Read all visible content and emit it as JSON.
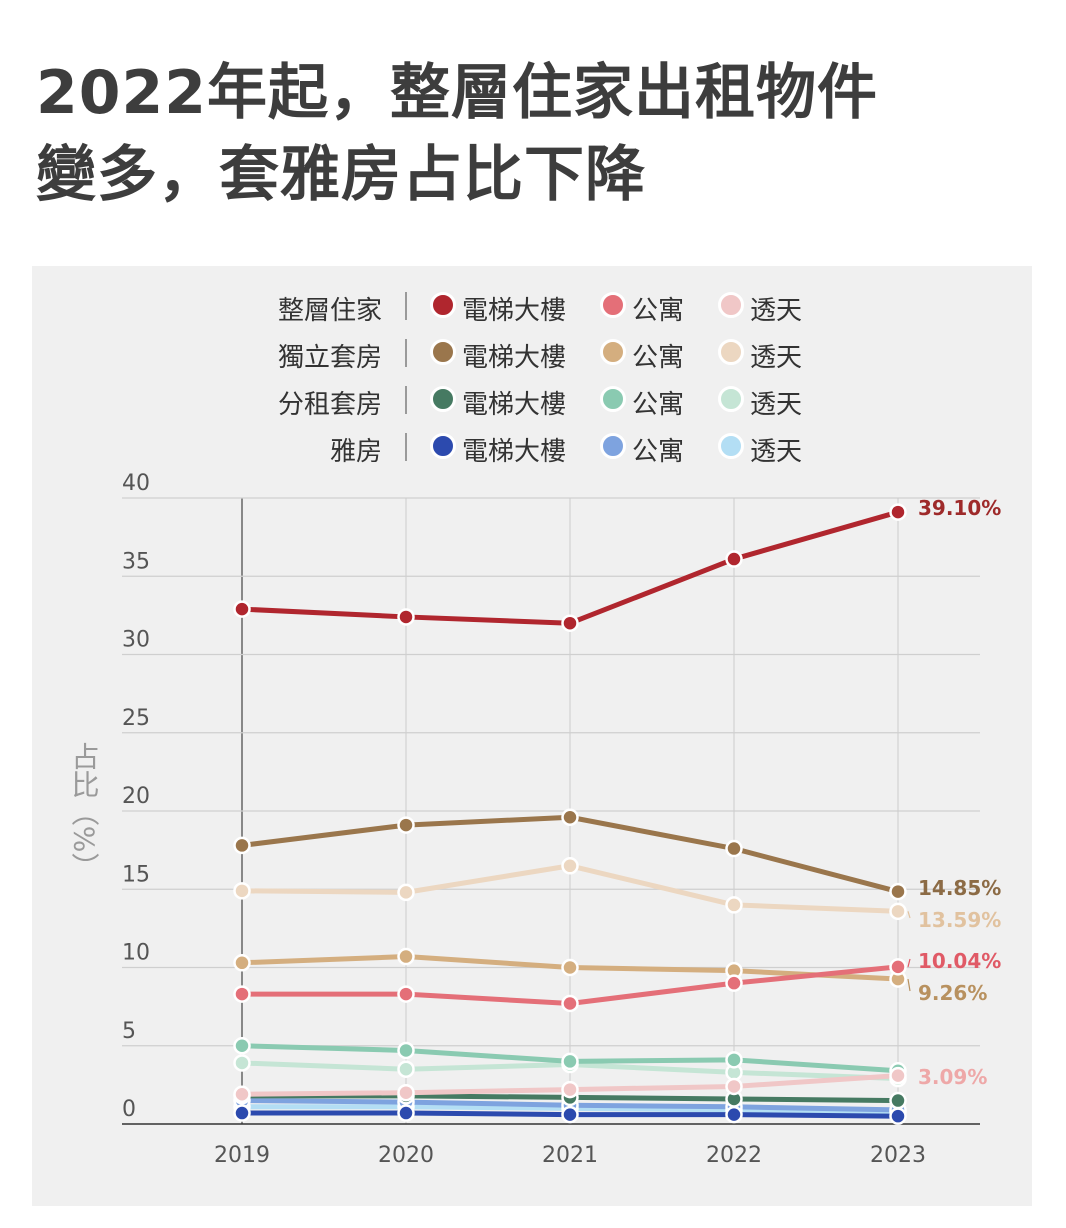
{
  "title_line1": "2022年起，整層住家出租物件",
  "title_line2": "變多，套雅房占比下降",
  "legend": {
    "groups": [
      "整層住家",
      "獨立套房",
      "分租套房",
      "雅房"
    ],
    "types": [
      "電梯大樓",
      "公寓",
      "透天"
    ]
  },
  "chart_data": {
    "type": "line",
    "title": "2022年起，整層住家出租物件變多，套雅房占比下降",
    "ylabel": "占比（%）",
    "xlabel": "",
    "x": [
      "2019",
      "2020",
      "2021",
      "2022",
      "2023"
    ],
    "yticks": [
      "0",
      "5",
      "10",
      "15",
      "20",
      "25",
      "30",
      "35",
      "40"
    ],
    "ylim": [
      0,
      40
    ],
    "grid": true,
    "legend_position": "top",
    "series": [
      {
        "name": "整層住家 電梯大樓",
        "color": "#b0262e",
        "values": [
          32.9,
          32.4,
          32.0,
          36.1,
          39.1
        ],
        "label": "39.10%"
      },
      {
        "name": "整層住家 公寓",
        "color": "#e46f78",
        "values": [
          8.3,
          8.3,
          7.7,
          9.0,
          10.04
        ],
        "label": "10.04%"
      },
      {
        "name": "整層住家 透天",
        "color": "#f0c7c7",
        "values": [
          1.9,
          2.0,
          2.2,
          2.4,
          3.09
        ],
        "label": "3.09%"
      },
      {
        "name": "獨立套房 電梯大樓",
        "color": "#9a764c",
        "values": [
          17.8,
          19.1,
          19.6,
          17.6,
          14.85
        ],
        "label": "14.85%"
      },
      {
        "name": "獨立套房 公寓",
        "color": "#d4ae7f",
        "values": [
          10.3,
          10.7,
          10.0,
          9.8,
          9.26
        ],
        "label": "9.26%"
      },
      {
        "name": "獨立套房 透天",
        "color": "#ecd7c1",
        "values": [
          14.9,
          14.8,
          16.5,
          14.0,
          13.59
        ],
        "label": "13.59%"
      },
      {
        "name": "分租套房 電梯大樓",
        "color": "#467a62",
        "values": [
          1.8,
          1.8,
          1.7,
          1.6,
          1.5
        ],
        "label": ""
      },
      {
        "name": "分租套房 公寓",
        "color": "#8acab1",
        "values": [
          5.0,
          4.7,
          4.0,
          4.1,
          3.4
        ],
        "label": ""
      },
      {
        "name": "分租套房 透天",
        "color": "#c5e5d5",
        "values": [
          3.9,
          3.5,
          3.8,
          3.3,
          2.9
        ],
        "label": ""
      },
      {
        "name": "雅房 電梯大樓",
        "color": "#2c4aae",
        "values": [
          0.7,
          0.7,
          0.6,
          0.6,
          0.5
        ],
        "label": ""
      },
      {
        "name": "雅房 公寓",
        "color": "#7ea3df",
        "values": [
          1.5,
          1.4,
          1.2,
          1.1,
          0.9
        ],
        "label": ""
      },
      {
        "name": "雅房 透天",
        "color": "#b3def4",
        "values": [
          1.1,
          1.1,
          1.0,
          0.9,
          0.8
        ],
        "label": ""
      }
    ],
    "value_labels": [
      {
        "text": "39.10%",
        "color": "#9e2a2a",
        "series": 0
      },
      {
        "text": "14.85%",
        "color": "#8c6b45",
        "series": 3
      },
      {
        "text": "13.59%",
        "color": "#e1c29f",
        "series": 5
      },
      {
        "text": "10.04%",
        "color": "#e05a66",
        "series": 1
      },
      {
        "text": "9.26%",
        "color": "#b8915f",
        "series": 4
      },
      {
        "text": "3.09%",
        "color": "#eea8a8",
        "series": 2
      }
    ]
  }
}
